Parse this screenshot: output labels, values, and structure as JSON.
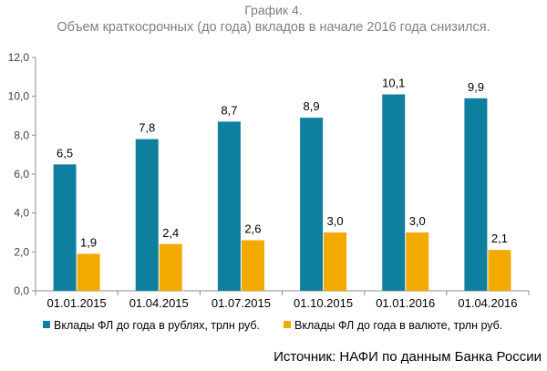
{
  "chart_data": {
    "type": "bar",
    "title": "График 4.",
    "subtitle": "Объем краткосрочных (до года) вкладов в начале 2016 года снизился.",
    "categories": [
      "01.01.2015",
      "01.04.2015",
      "01.07.2015",
      "01.10.2015",
      "01.01.2016",
      "01.04.2016"
    ],
    "series": [
      {
        "name": "Вклады ФЛ до года в рублях, трлн руб.",
        "color": "#0e7f9e",
        "values": [
          6.5,
          7.8,
          8.7,
          8.9,
          10.1,
          9.9
        ],
        "labels": [
          "6,5",
          "7,8",
          "8,7",
          "8,9",
          "10,1",
          "9,9"
        ]
      },
      {
        "name": "Вклады ФЛ до года в валюте, трлн руб.",
        "color": "#f2a900",
        "values": [
          1.9,
          2.4,
          2.6,
          3.0,
          3.0,
          2.1
        ],
        "labels": [
          "1,9",
          "2,4",
          "2,6",
          "3,0",
          "3,0",
          "2,1"
        ]
      }
    ],
    "ylim": [
      0,
      12
    ],
    "yticks": [
      0,
      2,
      4,
      6,
      8,
      10,
      12
    ],
    "ytick_labels": [
      "0,0",
      "2,0",
      "4,0",
      "6,0",
      "8,0",
      "10,0",
      "12,0"
    ],
    "grid": false,
    "legend": "bottom"
  },
  "source": "Источник: НАФИ по данным Банка России"
}
